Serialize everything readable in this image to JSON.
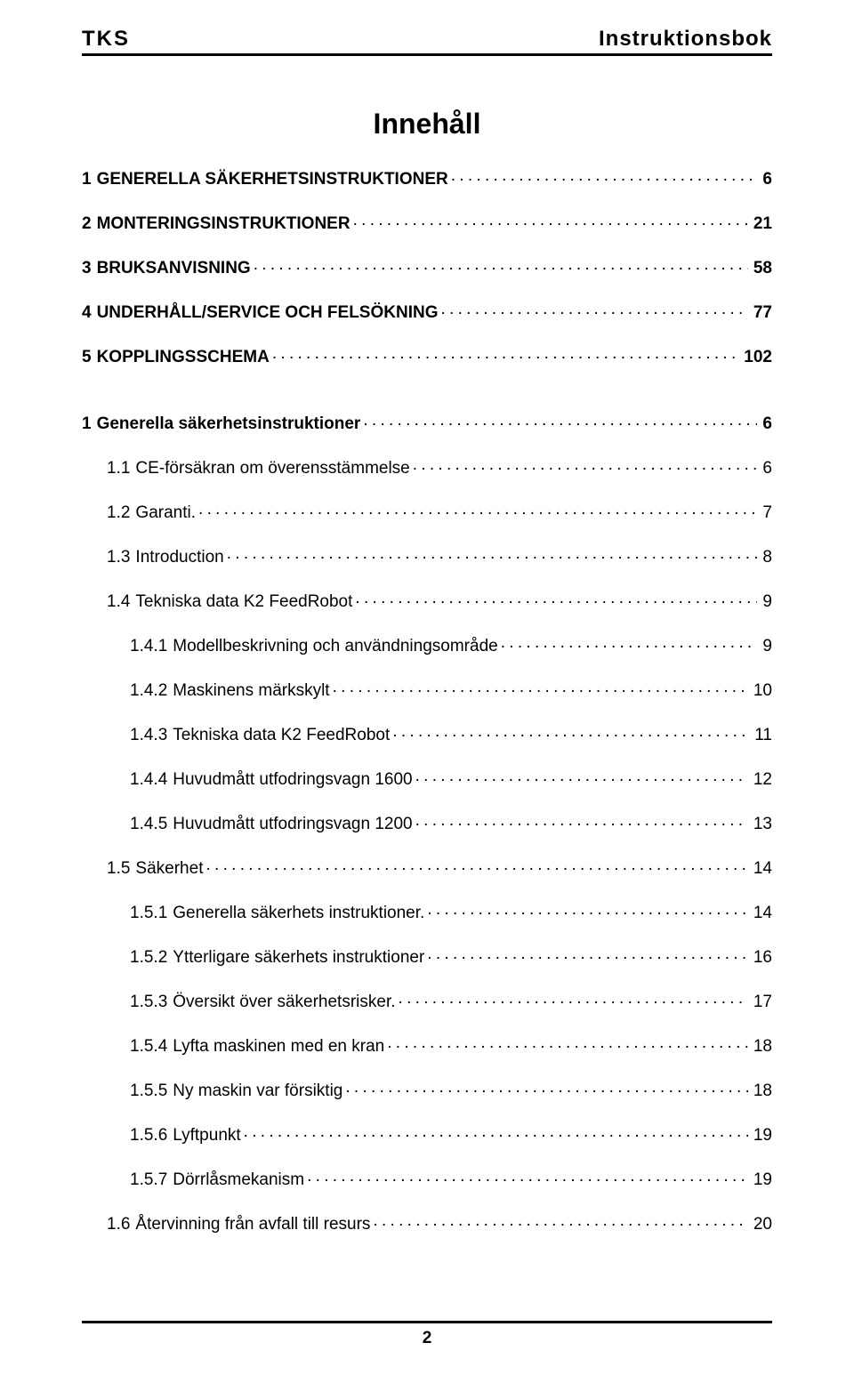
{
  "header": {
    "left": "TKS",
    "right": "Instruktionsbok"
  },
  "title": "Innehåll",
  "toc": [
    {
      "num": "1",
      "label": "GENERELLA SÄKERHETSINSTRUKTIONER",
      "page": "6",
      "indent": 0,
      "bold": true,
      "gap": "lg"
    },
    {
      "num": "2",
      "label": "MONTERINGSINSTRUKTIONER",
      "page": "21",
      "indent": 0,
      "bold": true,
      "gap": "lg"
    },
    {
      "num": "3",
      "label": "BRUKSANVISNING",
      "page": "58",
      "indent": 0,
      "bold": true,
      "gap": "lg"
    },
    {
      "num": "4",
      "label": "UNDERHÅLL/SERVICE OCH FELSÖKNING",
      "page": "77",
      "indent": 0,
      "bold": true,
      "gap": "lg"
    },
    {
      "num": "5",
      "label": "KOPPLINGSSCHEMA",
      "page": "102",
      "indent": 0,
      "bold": true,
      "gap": "xl"
    },
    {
      "num": "1",
      "label": "Generella säkerhetsinstruktioner",
      "page": "6",
      "indent": 0,
      "bold": true,
      "gap": "md"
    },
    {
      "num": "1.1",
      "label": "CE-försäkran om överensstämmelse",
      "page": "6",
      "indent": 1,
      "bold": false,
      "gap": "md"
    },
    {
      "num": "1.2",
      "label": "Garanti.",
      "page": "7",
      "indent": 1,
      "bold": false,
      "gap": "md"
    },
    {
      "num": "1.3",
      "label": "Introduction",
      "page": "8",
      "indent": 1,
      "bold": false,
      "gap": "md"
    },
    {
      "num": "1.4",
      "label": "Tekniska data K2 FeedRobot",
      "page": "9",
      "indent": 1,
      "bold": false,
      "gap": "md"
    },
    {
      "num": "1.4.1",
      "label": "Modellbeskrivning och användningsområde",
      "page": "9",
      "indent": 2,
      "bold": false,
      "gap": "md"
    },
    {
      "num": "1.4.2",
      "label": "Maskinens märkskylt",
      "page": "10",
      "indent": 2,
      "bold": false,
      "gap": "md"
    },
    {
      "num": "1.4.3",
      "label": "Tekniska data K2 FeedRobot",
      "page": "11",
      "indent": 2,
      "bold": false,
      "gap": "md"
    },
    {
      "num": "1.4.4",
      "label": "Huvudmått utfodringsvagn 1600",
      "page": "12",
      "indent": 2,
      "bold": false,
      "gap": "md"
    },
    {
      "num": "1.4.5",
      "label": "Huvudmått utfodringsvagn 1200",
      "page": "13",
      "indent": 2,
      "bold": false,
      "gap": "md"
    },
    {
      "num": "1.5",
      "label": "Säkerhet",
      "page": "14",
      "indent": 1,
      "bold": false,
      "gap": "md"
    },
    {
      "num": "1.5.1",
      "label": "Generella säkerhets instruktioner.",
      "page": "14",
      "indent": 2,
      "bold": false,
      "gap": "md"
    },
    {
      "num": "1.5.2",
      "label": "Ytterligare säkerhets instruktioner",
      "page": "16",
      "indent": 2,
      "bold": false,
      "gap": "md"
    },
    {
      "num": "1.5.3",
      "label": "Översikt över säkerhetsrisker.",
      "page": "17",
      "indent": 2,
      "bold": false,
      "gap": "md"
    },
    {
      "num": "1.5.4",
      "label": "Lyfta maskinen med en kran",
      "page": "18",
      "indent": 2,
      "bold": false,
      "gap": "md"
    },
    {
      "num": "1.5.5",
      "label": "Ny maskin var försiktig",
      "page": "18",
      "indent": 2,
      "bold": false,
      "gap": "md"
    },
    {
      "num": "1.5.6",
      "label": "Lyftpunkt",
      "page": "19",
      "indent": 2,
      "bold": false,
      "gap": "md"
    },
    {
      "num": "1.5.7",
      "label": "Dörrlåsmekanism",
      "page": "19",
      "indent": 2,
      "bold": false,
      "gap": "md"
    },
    {
      "num": "1.6",
      "label": "Återvinning från avfall till resurs",
      "page": "20",
      "indent": 1,
      "bold": false,
      "gap": "md"
    }
  ],
  "footer": {
    "page_number": "2"
  }
}
